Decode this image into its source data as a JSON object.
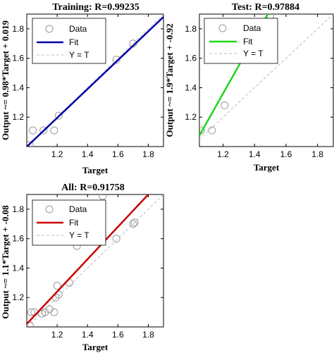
{
  "chart_data": [
    {
      "type": "scatter",
      "title": "Training: R=0.99235",
      "xlabel": "Target",
      "ylabel": "Output ~= 0.98*Target + 0.019",
      "xlim": [
        1.0,
        1.9
      ],
      "ylim": [
        1.0,
        1.9
      ],
      "xticks": [
        "1.2",
        "1.4",
        "1.6",
        "1.8"
      ],
      "yticks": [
        "1.2",
        "1.4",
        "1.6",
        "1.8"
      ],
      "grid": false,
      "legend_position": "top-left",
      "colors": {
        "fit": "#0000a8",
        "data": "#9a9a9a",
        "identity": "#bdbdbd"
      },
      "legend": {
        "data": "Data",
        "fit": "Fit",
        "identity": "Y = T"
      },
      "fit": {
        "slope": 0.98,
        "intercept": 0.019
      },
      "points": [
        {
          "x": 1.02,
          "y": 1.01
        },
        {
          "x": 1.04,
          "y": 1.11
        },
        {
          "x": 1.11,
          "y": 1.11
        },
        {
          "x": 1.18,
          "y": 1.11
        },
        {
          "x": 1.21,
          "y": 1.21
        },
        {
          "x": 1.59,
          "y": 1.59
        },
        {
          "x": 1.7,
          "y": 1.7
        }
      ]
    },
    {
      "type": "scatter",
      "title": "Test: R=0.97884",
      "xlabel": "Target",
      "ylabel": "Output ~= 1.9*Target + -0.92",
      "xlim": [
        1.05,
        1.9
      ],
      "ylim": [
        1.0,
        1.9
      ],
      "xticks": [
        "1.2",
        "1.4",
        "1.6",
        "1.8"
      ],
      "yticks": [
        "1.2",
        "1.4",
        "1.6",
        "1.8"
      ],
      "grid": false,
      "legend_position": "top-left",
      "colors": {
        "fit": "#1ed81e",
        "data": "#9a9a9a",
        "identity": "#bdbdbd"
      },
      "legend": {
        "data": "Data",
        "fit": "Fit",
        "identity": "Y = T"
      },
      "fit": {
        "slope": 1.9,
        "intercept": -0.92
      },
      "points": [
        {
          "x": 1.06,
          "y": 1.11
        },
        {
          "x": 1.13,
          "y": 1.11
        },
        {
          "x": 1.21,
          "y": 1.28
        },
        {
          "x": 1.5,
          "y": 1.89
        }
      ]
    },
    {
      "type": "scatter",
      "title": "All: R=0.91758",
      "xlabel": "Target",
      "ylabel": "Output ~= 1.1*Target + -0.08",
      "xlim": [
        1.0,
        1.9
      ],
      "ylim": [
        1.0,
        1.9
      ],
      "xticks": [
        "1.2",
        "1.4",
        "1.6",
        "1.8"
      ],
      "yticks": [
        "1.2",
        "1.4",
        "1.6",
        "1.8"
      ],
      "grid": false,
      "legend_position": "top-left",
      "colors": {
        "fit": "#c80000",
        "data": "#9a9a9a",
        "identity": "#bdbdbd"
      },
      "legend": {
        "data": "Data",
        "fit": "Fit",
        "identity": "Y = T"
      },
      "fit": {
        "slope": 1.1,
        "intercept": -0.08
      },
      "points": [
        {
          "x": 1.02,
          "y": 1.01
        },
        {
          "x": 1.03,
          "y": 1.1
        },
        {
          "x": 1.05,
          "y": 1.1
        },
        {
          "x": 1.1,
          "y": 1.09
        },
        {
          "x": 1.12,
          "y": 1.1
        },
        {
          "x": 1.15,
          "y": 1.12
        },
        {
          "x": 1.18,
          "y": 1.1
        },
        {
          "x": 1.19,
          "y": 1.2
        },
        {
          "x": 1.2,
          "y": 1.28
        },
        {
          "x": 1.21,
          "y": 1.22
        },
        {
          "x": 1.28,
          "y": 1.3
        },
        {
          "x": 1.33,
          "y": 1.55
        },
        {
          "x": 1.5,
          "y": 1.89
        },
        {
          "x": 1.59,
          "y": 1.6
        },
        {
          "x": 1.7,
          "y": 1.7
        },
        {
          "x": 1.71,
          "y": 1.71
        }
      ]
    }
  ]
}
